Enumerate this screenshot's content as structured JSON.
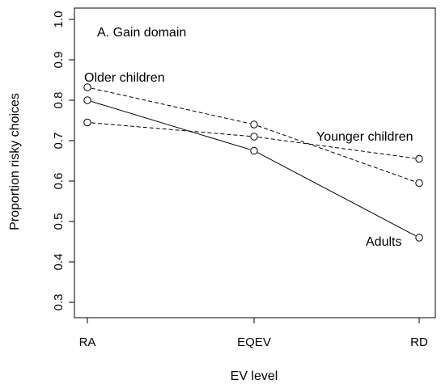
{
  "chart_data": {
    "type": "line",
    "panel_label": "A. Gain domain",
    "xlabel": "EV level",
    "ylabel": "Proportion risky choices",
    "categories": [
      "RA",
      "EQEV",
      "RD"
    ],
    "ylim": [
      0.3,
      1.0
    ],
    "yticks": [
      "0.3",
      "0.4",
      "0.5",
      "0.6",
      "0.7",
      "0.8",
      "0.9",
      "1.0"
    ],
    "grid": false,
    "series": [
      {
        "name": "Adults",
        "line_style": "solid",
        "values": [
          0.8,
          0.675,
          0.46
        ]
      },
      {
        "name": "Older children",
        "line_style": "dashed",
        "values": [
          0.832,
          0.74,
          0.595
        ]
      },
      {
        "name": "Younger children",
        "line_style": "dashed",
        "values": [
          0.745,
          0.71,
          0.655
        ]
      }
    ],
    "series_labels": [
      "Older children",
      "Younger children",
      "Adults"
    ]
  }
}
